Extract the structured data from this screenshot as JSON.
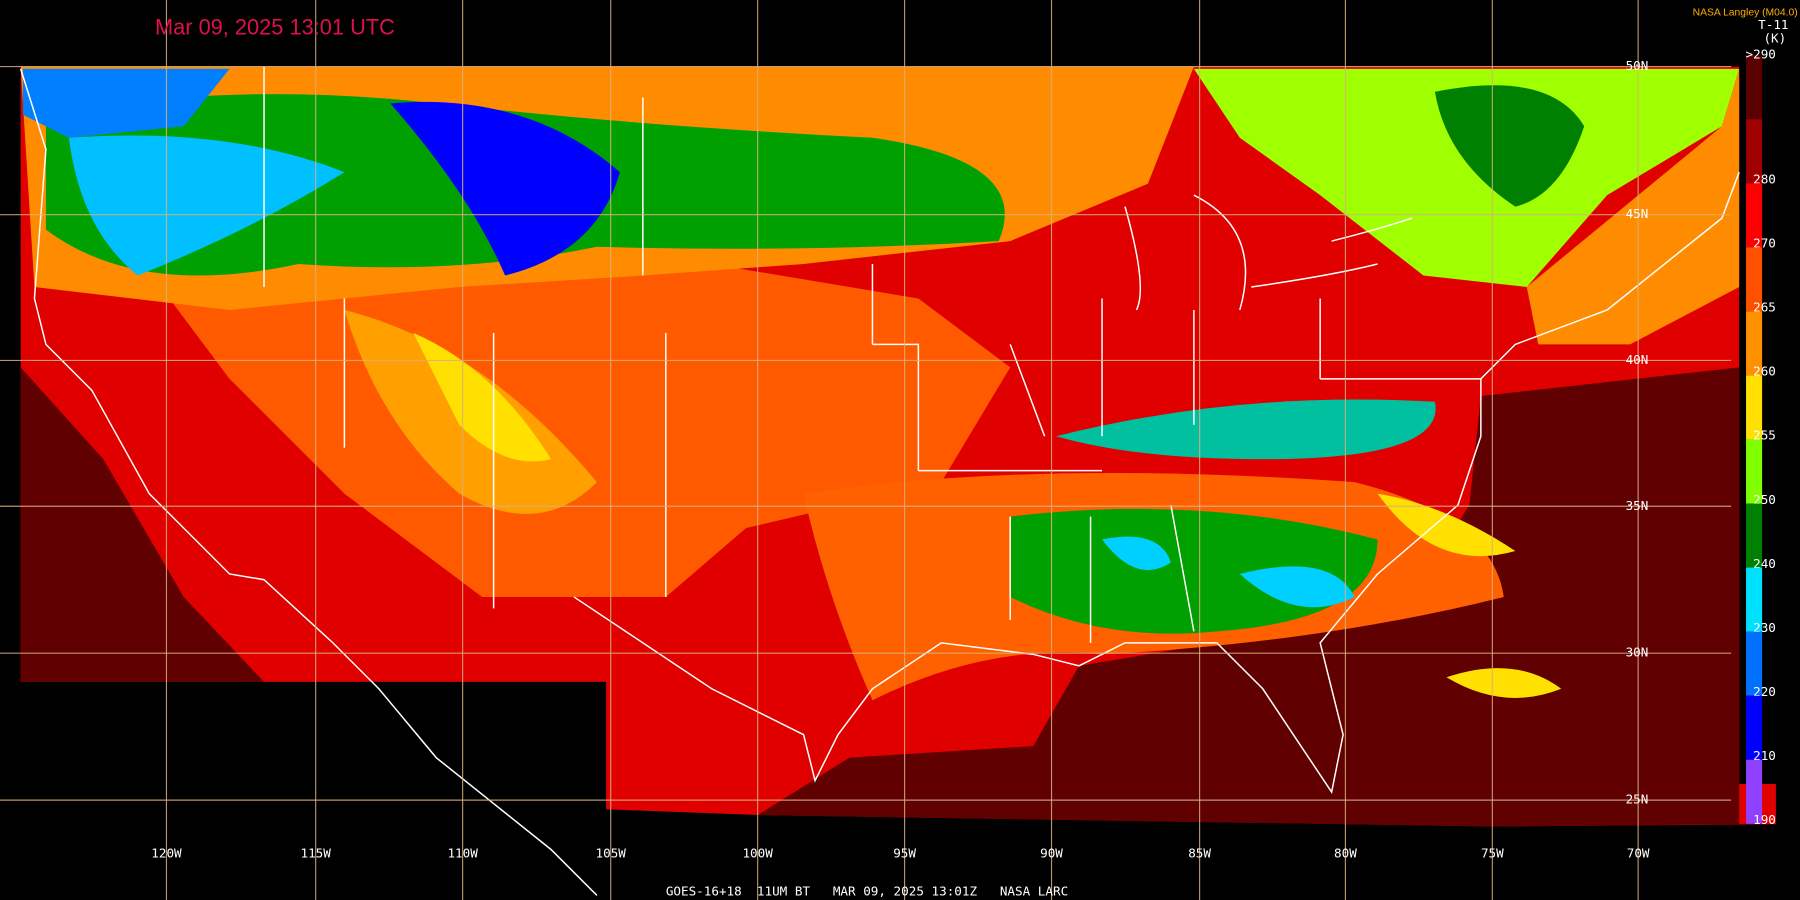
{
  "header": {
    "title": "Mar 09, 2025 13:01 UTC",
    "credit": "NASA Langley (M04.0)"
  },
  "colorbar": {
    "product": "T-11",
    "units": "(K)",
    "ticks": [
      {
        "value": 290,
        "label": ">290"
      },
      280,
      270,
      265,
      260,
      255,
      250,
      240,
      230,
      220,
      210,
      190
    ]
  },
  "graticule": {
    "longitudes": [
      "120W",
      "115W",
      "110W",
      "105W",
      "100W",
      "95W",
      "90W",
      "85W",
      "80W",
      "75W",
      "70W"
    ],
    "latitudes": [
      "50N",
      "45N",
      "40N",
      "35N",
      "30N",
      "25N"
    ]
  },
  "footer": "GOES-16+18  11UM BT   MAR 09, 2025 13:01Z   NASA LARC"
}
